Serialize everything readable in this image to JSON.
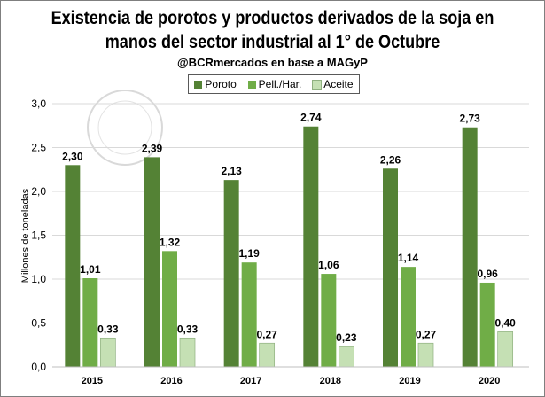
{
  "chart_data": {
    "type": "bar",
    "title": "Existencia de porotos y productos derivados de la soja en manos del sector industrial al 1° de Octubre",
    "title_line1": "Existencia de porotos y productos derivados de la soja en",
    "title_line2": "manos del sector industrial al 1° de Octubre",
    "subtitle": "@BCRmercados  en base a MAGyP",
    "xlabel": "",
    "ylabel": "Millones de toneladas",
    "ylim": [
      0,
      3
    ],
    "yticks": [
      "0,0",
      "0,5",
      "1,0",
      "1,5",
      "2,0",
      "2,5",
      "3,0"
    ],
    "grid": true,
    "legend_position": "top",
    "categories": [
      "2015",
      "2016",
      "2017",
      "2018",
      "2019",
      "2020"
    ],
    "series": [
      {
        "name": "Poroto",
        "color": "#548235",
        "values": [
          2.3,
          2.39,
          2.13,
          2.74,
          2.26,
          2.73
        ],
        "labels": [
          "2,30",
          "2,39",
          "2,13",
          "2,74",
          "2,26",
          "2,73"
        ]
      },
      {
        "name": "Pell./Har.",
        "color": "#70AD47",
        "values": [
          1.01,
          1.32,
          1.19,
          1.06,
          1.14,
          0.96
        ],
        "labels": [
          "1,01",
          "1,32",
          "1,19",
          "1,06",
          "1,14",
          "0,96"
        ]
      },
      {
        "name": "Aceite",
        "color": "#C5E0B4",
        "values": [
          0.33,
          0.33,
          0.27,
          0.23,
          0.27,
          0.4
        ],
        "labels": [
          "0,33",
          "0,33",
          "0,27",
          "0,23",
          "0,27",
          "0,40"
        ]
      }
    ]
  }
}
